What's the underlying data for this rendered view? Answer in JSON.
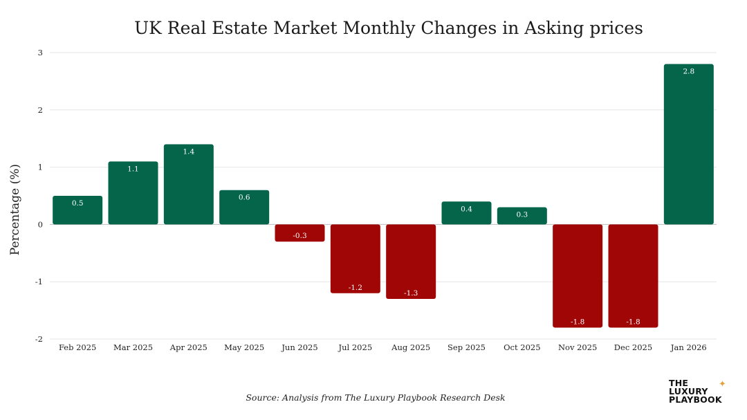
{
  "chart_data": {
    "type": "bar",
    "title": "UK Real Estate Market Monthly Changes in Asking prices",
    "ylabel": "Percentage (%)",
    "xlabel": "",
    "categories": [
      "Feb 2025",
      "Mar 2025",
      "Apr 2025",
      "May 2025",
      "Jun 2025",
      "Jul 2025",
      "Aug 2025",
      "Sep 2025",
      "Oct 2025",
      "Nov 2025",
      "Dec 2025",
      "Jan 2026"
    ],
    "values": [
      0.5,
      1.1,
      1.4,
      0.6,
      -0.3,
      -1.2,
      -1.3,
      0.4,
      0.3,
      -1.8,
      -1.8,
      2.8
    ],
    "ylim": [
      -2,
      3
    ],
    "yticks": [
      3,
      2,
      1,
      0,
      -1,
      -2
    ],
    "grid": true,
    "colors": {
      "positive": "#05654a",
      "negative": "#a10606"
    }
  },
  "source": "Source: Analysis from The Luxury Playbook Research Desk",
  "logo": {
    "line1": "THE",
    "line2": "LUXURY",
    "line3": "PLAYBOOK"
  }
}
